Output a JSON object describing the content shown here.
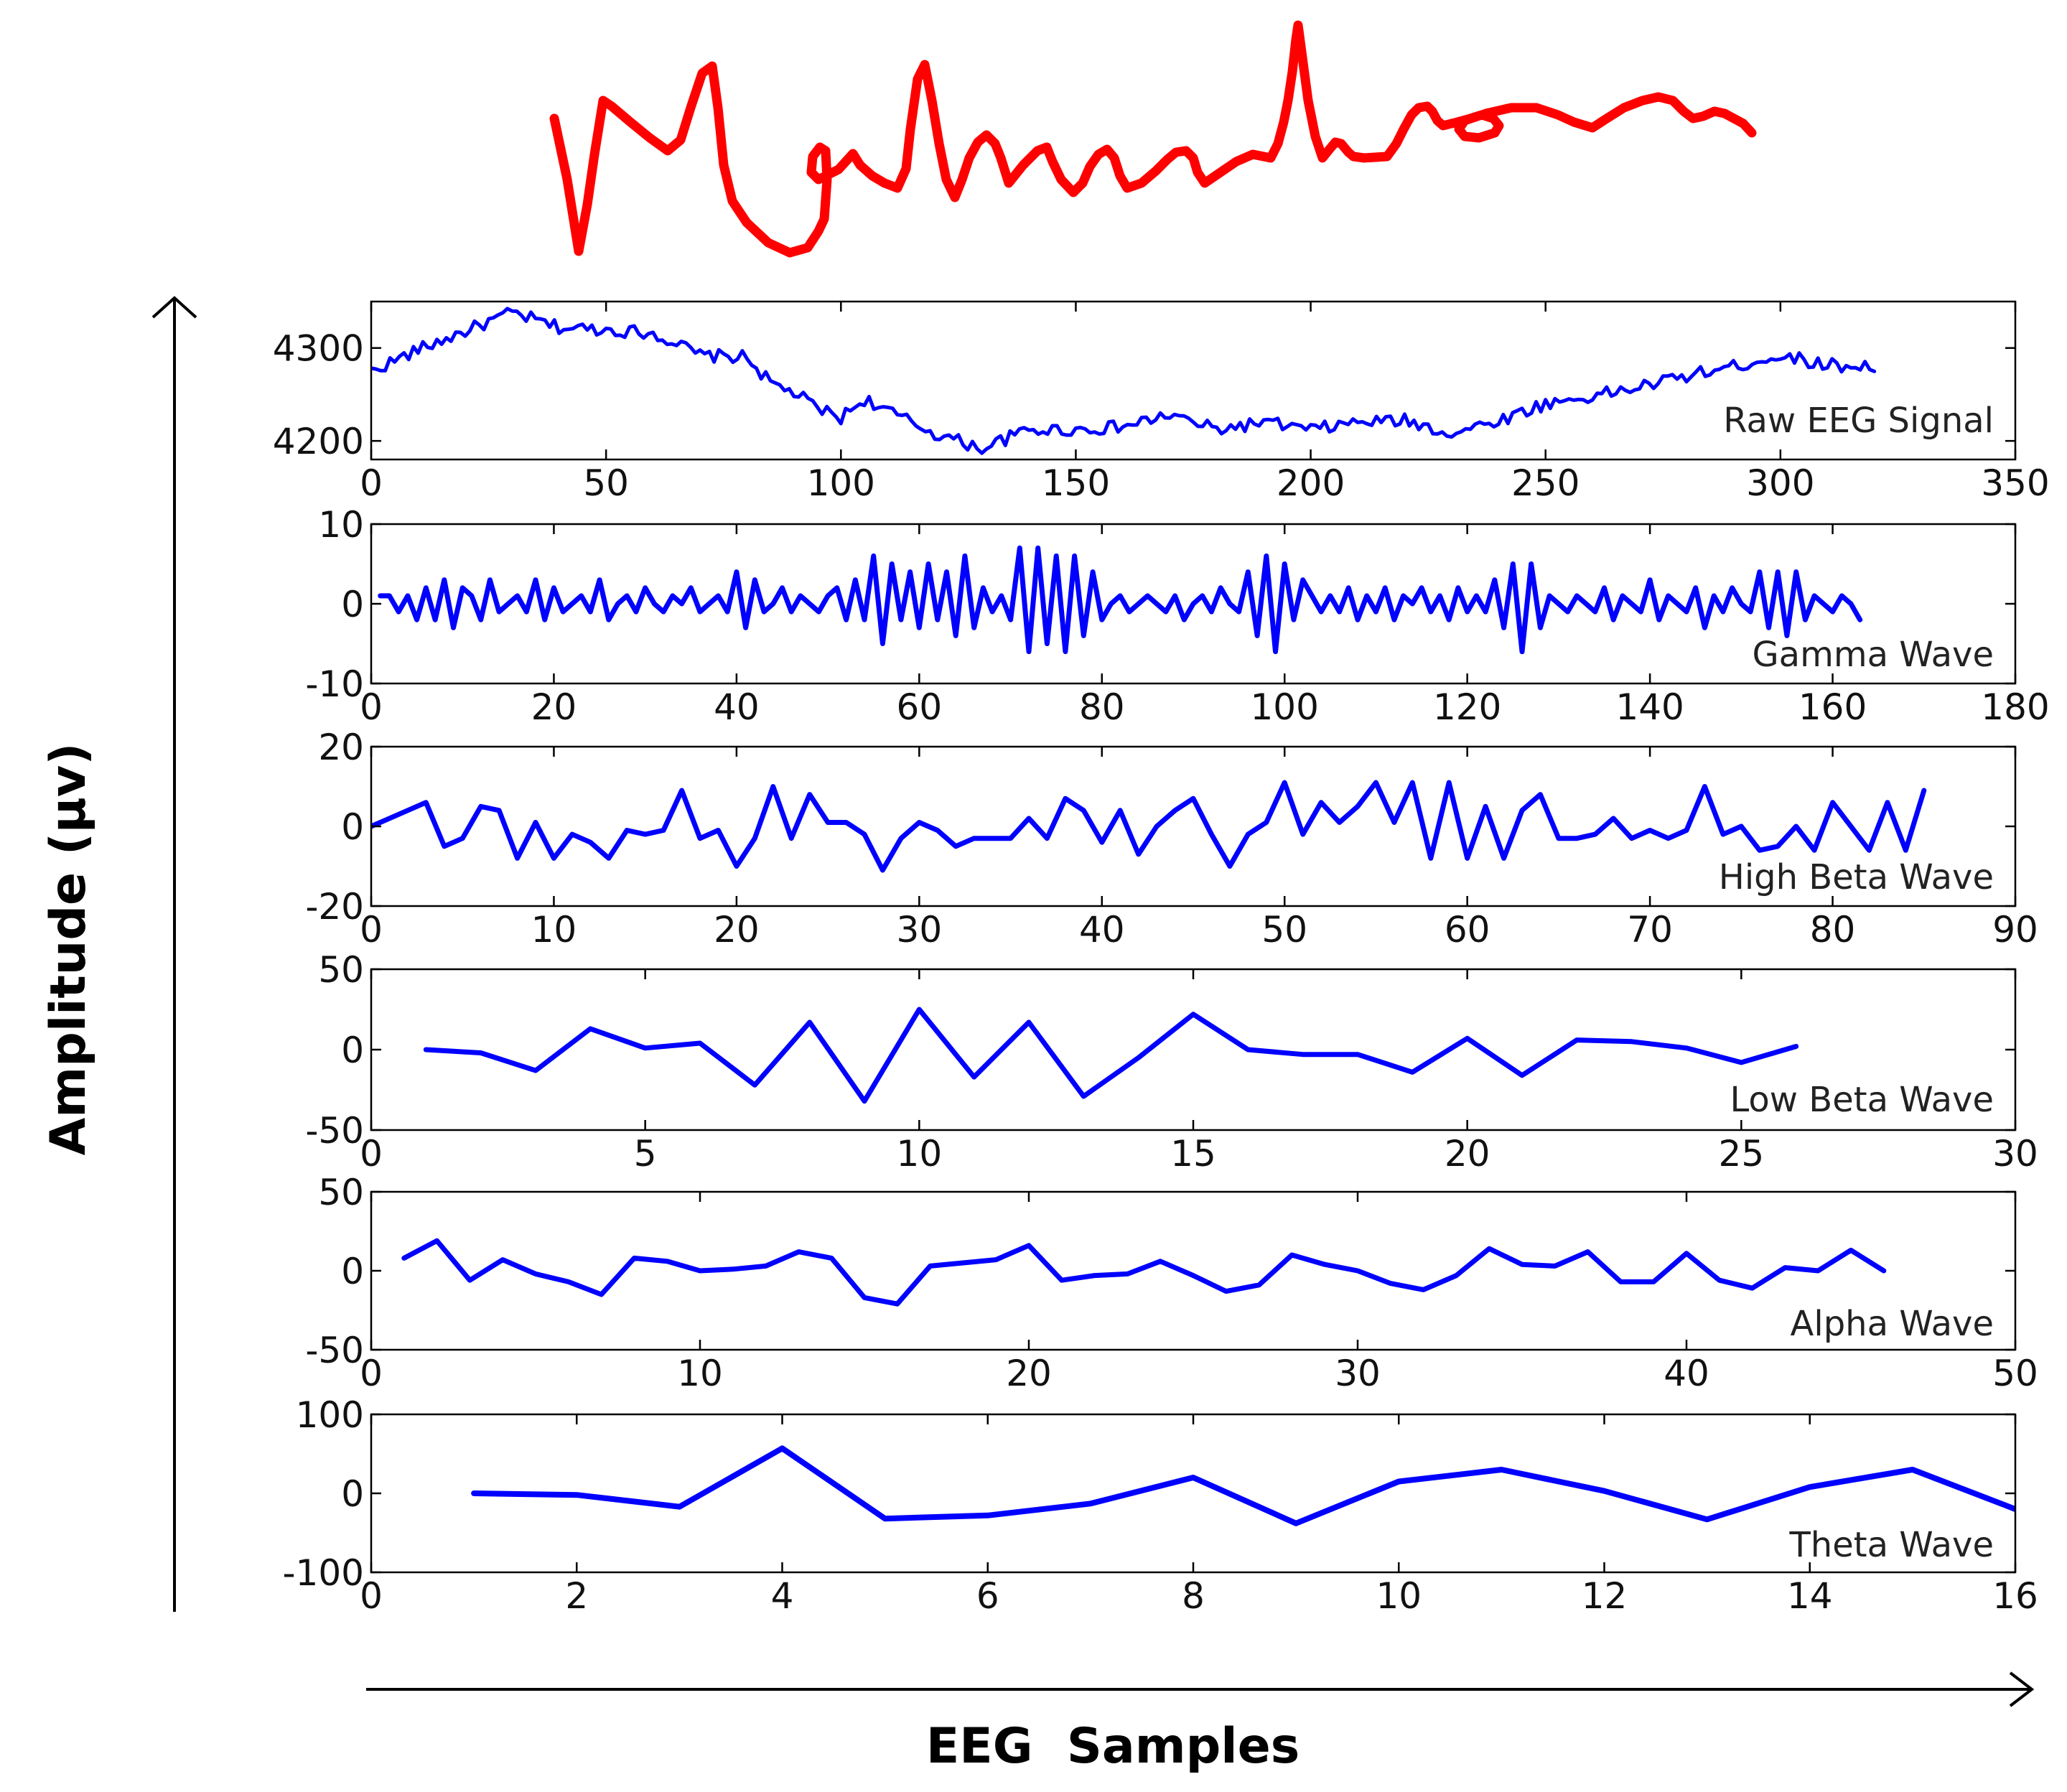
{
  "signature": {
    "text": "Mahendra",
    "color": "#ff0000"
  },
  "axes": {
    "ylabel": "Amplitude (µv)",
    "xlabel": "EEG  Samples"
  },
  "colors": {
    "series": "#0000ff",
    "frame": "#000000"
  },
  "chart_data": [
    {
      "type": "line",
      "series_label": "Raw EEG Signal",
      "xlim": [
        0,
        350
      ],
      "ylim": [
        4180,
        4350
      ],
      "xticks": [
        0,
        50,
        100,
        150,
        200,
        250,
        300,
        350
      ],
      "yticks": [
        4200,
        4300
      ],
      "x_range": [
        0,
        320
      ],
      "y_anchors": [
        [
          0,
          4275
        ],
        [
          10,
          4298
        ],
        [
          20,
          4318
        ],
        [
          30,
          4338
        ],
        [
          40,
          4322
        ],
        [
          50,
          4320
        ],
        [
          60,
          4316
        ],
        [
          65,
          4305
        ],
        [
          70,
          4292
        ],
        [
          80,
          4290
        ],
        [
          85,
          4262
        ],
        [
          90,
          4252
        ],
        [
          95,
          4235
        ],
        [
          100,
          4225
        ],
        [
          105,
          4245
        ],
        [
          110,
          4232
        ],
        [
          120,
          4208
        ],
        [
          130,
          4192
        ],
        [
          140,
          4212
        ],
        [
          150,
          4212
        ],
        [
          160,
          4215
        ],
        [
          170,
          4228
        ],
        [
          180,
          4212
        ],
        [
          190,
          4220
        ],
        [
          200,
          4212
        ],
        [
          210,
          4220
        ],
        [
          220,
          4222
        ],
        [
          230,
          4208
        ],
        [
          240,
          4222
        ],
        [
          250,
          4240
        ],
        [
          260,
          4248
        ],
        [
          270,
          4258
        ],
        [
          280,
          4270
        ],
        [
          290,
          4280
        ],
        [
          300,
          4292
        ],
        [
          310,
          4282
        ],
        [
          320,
          4280
        ]
      ]
    },
    {
      "type": "line",
      "series_label": "Gamma Wave",
      "xlim": [
        0,
        180
      ],
      "ylim": [
        -10,
        10
      ],
      "xticks": [
        0,
        20,
        40,
        60,
        80,
        100,
        120,
        140,
        160,
        180
      ],
      "yticks": [
        -10,
        0,
        10
      ],
      "x": [
        1,
        2,
        3,
        4,
        5,
        6,
        7,
        8,
        9,
        10,
        11,
        12,
        13,
        14,
        15,
        16,
        17,
        18,
        19,
        20,
        21,
        22,
        23,
        24,
        25,
        26,
        27,
        28,
        29,
        30,
        31,
        32,
        33,
        34,
        35,
        36,
        37,
        38,
        39,
        40,
        41,
        42,
        43,
        44,
        45,
        46,
        47,
        48,
        49,
        50,
        51,
        52,
        53,
        54,
        55,
        56,
        57,
        58,
        59,
        60,
        61,
        62,
        63,
        64,
        65,
        66,
        67,
        68,
        69,
        70,
        71,
        72,
        73,
        74,
        75,
        76,
        77,
        78,
        79,
        80,
        81,
        82,
        83,
        84,
        85,
        86,
        87,
        88,
        89,
        90,
        91,
        92,
        93,
        94,
        95,
        96,
        97,
        98,
        99,
        100,
        101,
        102,
        103,
        104,
        105,
        106,
        107,
        108,
        109,
        110,
        111,
        112,
        113,
        114,
        115,
        116,
        117,
        118,
        119,
        120,
        121,
        122,
        123,
        124,
        125,
        126,
        127,
        128,
        129,
        130,
        131,
        132,
        133,
        134,
        135,
        136,
        137,
        138,
        139,
        140,
        141,
        142,
        143,
        144,
        145,
        146,
        147,
        148,
        149,
        150,
        151,
        152,
        153,
        154,
        155,
        156,
        157,
        158,
        159,
        160,
        161,
        162,
        163
      ],
      "values": [
        1,
        1,
        -1,
        1,
        -2,
        2,
        -2,
        3,
        -3,
        2,
        1,
        -2,
        3,
        -1,
        0,
        1,
        -1,
        3,
        -2,
        2,
        -1,
        0,
        1,
        -1,
        3,
        -2,
        0,
        1,
        -1,
        2,
        0,
        -1,
        1,
        0,
        2,
        -1,
        0,
        1,
        -1,
        4,
        -3,
        3,
        -1,
        0,
        2,
        -1,
        1,
        0,
        -1,
        1,
        2,
        -2,
        3,
        -2,
        6,
        -5,
        5,
        -2,
        4,
        -3,
        5,
        -2,
        4,
        -4,
        6,
        -3,
        2,
        -1,
        1,
        -2,
        7,
        -6,
        7,
        -5,
        6,
        -6,
        6,
        -4,
        4,
        -2,
        0,
        1,
        -1,
        0,
        1,
        0,
        -1,
        1,
        -2,
        0,
        1,
        -1,
        2,
        0,
        -1,
        4,
        -4,
        6,
        -6,
        5,
        -2,
        3,
        1,
        -1,
        1,
        -1,
        2,
        -2,
        1,
        -1,
        2,
        -2,
        1,
        0,
        2,
        -1,
        1,
        -2,
        2,
        -1,
        1,
        -1,
        3,
        -3,
        5,
        -6,
        5,
        -3,
        1,
        0,
        -1,
        1,
        0,
        -1,
        2,
        -2,
        1,
        0,
        -1,
        3,
        -2,
        1,
        0,
        -1,
        2,
        -3,
        1,
        -1,
        2,
        0,
        -1,
        4,
        -3,
        4,
        -4,
        4,
        -2,
        1,
        0,
        -1,
        1,
        0,
        -2
      ]
    },
    {
      "type": "line",
      "series_label": "High Beta Wave",
      "xlim": [
        0,
        90
      ],
      "ylim": [
        -20,
        20
      ],
      "xticks": [
        0,
        10,
        20,
        30,
        40,
        50,
        60,
        70,
        80,
        90
      ],
      "yticks": [
        -20,
        0,
        20
      ],
      "x": [
        0,
        1,
        2,
        3,
        4,
        5,
        6,
        7,
        8,
        9,
        10,
        11,
        12,
        13,
        14,
        15,
        16,
        17,
        18,
        19,
        20,
        21,
        22,
        23,
        24,
        25,
        26,
        27,
        28,
        29,
        30,
        31,
        32,
        33,
        34,
        35,
        36,
        37,
        38,
        39,
        40,
        41,
        42,
        43,
        44,
        45,
        46,
        47,
        48,
        49,
        50,
        51,
        52,
        53,
        54,
        55,
        56,
        57,
        58,
        59,
        60,
        61,
        62,
        63,
        64,
        65,
        66,
        67,
        68,
        69,
        70,
        71,
        72,
        73,
        74,
        75,
        76,
        77,
        78,
        79,
        80,
        81,
        82,
        83,
        84,
        85
      ],
      "values": [
        0,
        2,
        4,
        6,
        -5,
        -3,
        5,
        4,
        -8,
        1,
        -8,
        -2,
        -4,
        -8,
        -1,
        -2,
        -1,
        9,
        -3,
        -1,
        -10,
        -3,
        10,
        -3,
        8,
        1,
        1,
        -2,
        -11,
        -3,
        1,
        -1,
        -5,
        -3,
        -3,
        -3,
        2,
        -3,
        7,
        4,
        -4,
        4,
        -7,
        0,
        4,
        7,
        -2,
        -10,
        -2,
        1,
        11,
        -2,
        6,
        1,
        5,
        11,
        1,
        11,
        -8,
        11,
        -8,
        5,
        -8,
        4,
        8,
        -3,
        -3,
        -2,
        2,
        -3,
        -1,
        -3,
        -1,
        10,
        -2,
        0,
        -6,
        -5,
        0,
        -6,
        6,
        0,
        -6,
        6,
        -6,
        9
      ]
    },
    {
      "type": "line",
      "series_label": "Low Beta Wave",
      "xlim": [
        0,
        30
      ],
      "ylim": [
        -50,
        50
      ],
      "xticks": [
        0,
        5,
        10,
        15,
        20,
        25,
        30
      ],
      "yticks": [
        -50,
        0,
        50
      ],
      "x": [
        1,
        2,
        3,
        4,
        5,
        6,
        7,
        8,
        9,
        10,
        11,
        12,
        13,
        14,
        15,
        16,
        17,
        18,
        19,
        20,
        21,
        22,
        23,
        24,
        25,
        26
      ],
      "values": [
        0,
        -2,
        -13,
        13,
        1,
        4,
        -22,
        17,
        -32,
        25,
        -17,
        17,
        -29,
        -5,
        22,
        0,
        -3,
        -3,
        -14,
        7,
        -16,
        6,
        5,
        1,
        -8,
        2
      ]
    },
    {
      "type": "line",
      "series_label": "Alpha Wave",
      "xlim": [
        0,
        50
      ],
      "ylim": [
        -50,
        50
      ],
      "xticks": [
        0,
        10,
        20,
        30,
        40,
        50
      ],
      "yticks": [
        -50,
        0,
        50
      ],
      "x": [
        1,
        2,
        3,
        4,
        5,
        6,
        7,
        8,
        9,
        10,
        11,
        12,
        13,
        14,
        15,
        16,
        17,
        18,
        19,
        20,
        21,
        22,
        23,
        24,
        25,
        26,
        27,
        28,
        29,
        30,
        31,
        32,
        33,
        34,
        35,
        36,
        37,
        38,
        39,
        40,
        41,
        42,
        43,
        44,
        45,
        46
      ],
      "values": [
        8,
        19,
        -6,
        7,
        -2,
        -7,
        -15,
        8,
        6,
        0,
        1,
        3,
        12,
        8,
        -17,
        -21,
        3,
        5,
        7,
        16,
        -6,
        -3,
        -2,
        6,
        -3,
        -13,
        -9,
        10,
        4,
        0,
        -8,
        -12,
        -3,
        14,
        4,
        3,
        12,
        -7,
        -7,
        11,
        -6,
        -11,
        2,
        0,
        13,
        0
      ]
    },
    {
      "type": "line",
      "series_label": "Theta Wave",
      "xlim": [
        0,
        16
      ],
      "ylim": [
        -100,
        100
      ],
      "xticks": [
        0,
        2,
        4,
        6,
        8,
        10,
        12,
        14,
        16
      ],
      "yticks": [
        -100,
        0,
        100
      ],
      "x": [
        1,
        2,
        3,
        4,
        5,
        6,
        7,
        8,
        9,
        10,
        11,
        12,
        13,
        14,
        15,
        16
      ],
      "values": [
        0,
        -2,
        -17,
        57,
        -32,
        -28,
        -13,
        20,
        -38,
        15,
        30,
        3,
        -33,
        8,
        30,
        -20
      ]
    }
  ]
}
